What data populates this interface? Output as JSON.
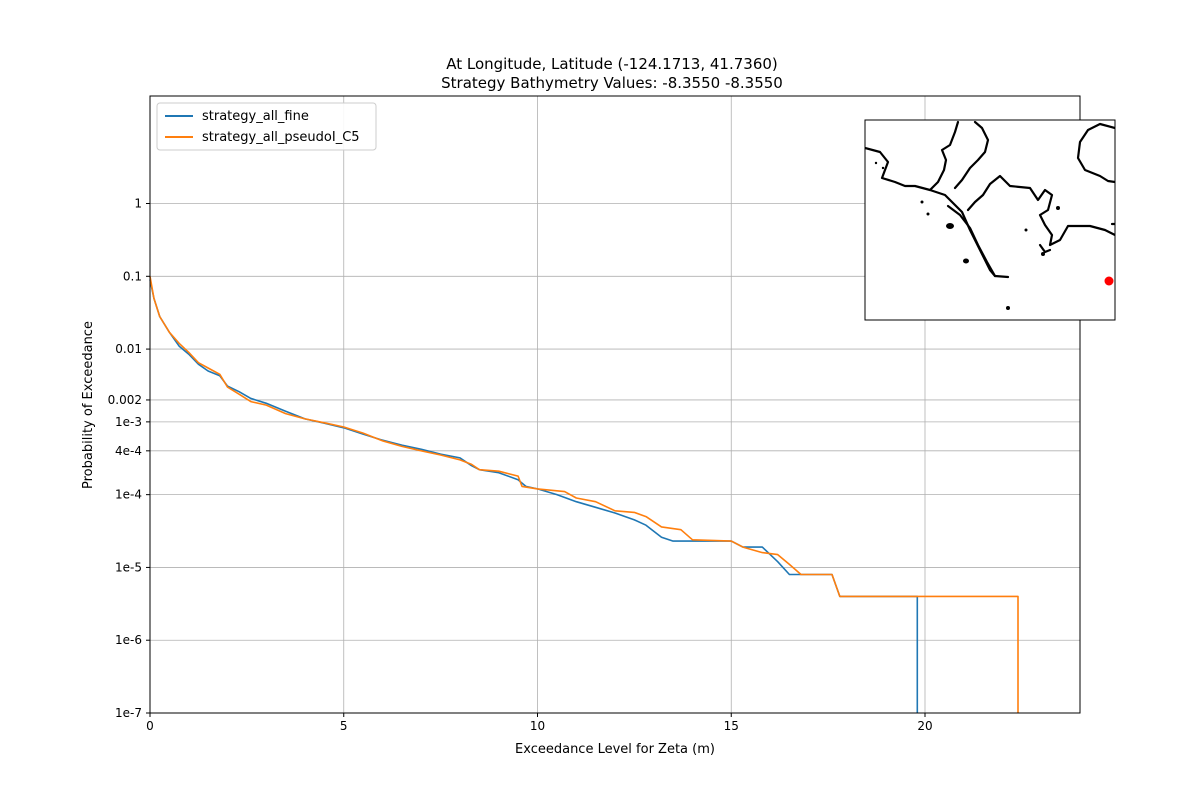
{
  "chart_data": {
    "type": "line",
    "title": "At Longitude, Latitude (-124.1713,  41.7360)",
    "subtitle": "Strategy Bathymetry Values:   -8.3550   -8.3550",
    "xlabel": "Exceedance Level for Zeta (m)",
    "ylabel": "Probability of Exceedance",
    "xlim": [
      0,
      24
    ],
    "ylim": [
      1e-07,
      30
    ],
    "yscale": "log",
    "grid": true,
    "legend_position": "top-left",
    "x_ticks": [
      {
        "value": 0,
        "label": "0"
      },
      {
        "value": 5,
        "label": "5"
      },
      {
        "value": 10,
        "label": "10"
      },
      {
        "value": 15,
        "label": "15"
      },
      {
        "value": 20,
        "label": "20"
      }
    ],
    "y_ticks": [
      {
        "value": 1,
        "label": "1"
      },
      {
        "value": 0.1,
        "label": "0.1"
      },
      {
        "value": 0.01,
        "label": "0.01"
      },
      {
        "value": 0.002,
        "label": "0.002"
      },
      {
        "value": 0.001,
        "label": "1e-3"
      },
      {
        "value": 0.0004,
        "label": "4e-4"
      },
      {
        "value": 0.0001,
        "label": "1e-4"
      },
      {
        "value": 1e-05,
        "label": "1e-5"
      },
      {
        "value": 1e-06,
        "label": "1e-6"
      },
      {
        "value": 1e-07,
        "label": "1e-7"
      }
    ],
    "series": [
      {
        "name": "strategy_all_fine",
        "color": "#1f77b4",
        "points": [
          [
            0.0,
            0.09
          ],
          [
            0.1,
            0.05
          ],
          [
            0.25,
            0.028
          ],
          [
            0.5,
            0.017
          ],
          [
            0.75,
            0.011
          ],
          [
            1.0,
            0.0085
          ],
          [
            1.25,
            0.0062
          ],
          [
            1.5,
            0.005
          ],
          [
            1.8,
            0.0043
          ],
          [
            2.0,
            0.0031
          ],
          [
            2.3,
            0.0026
          ],
          [
            2.6,
            0.0021
          ],
          [
            3.0,
            0.0018
          ],
          [
            3.5,
            0.0014
          ],
          [
            4.0,
            0.0011
          ],
          [
            4.5,
            0.00096
          ],
          [
            5.0,
            0.00083
          ],
          [
            5.5,
            0.00068
          ],
          [
            6.0,
            0.00056
          ],
          [
            6.5,
            0.00048
          ],
          [
            7.0,
            0.00042
          ],
          [
            7.5,
            0.00036
          ],
          [
            8.0,
            0.00032
          ],
          [
            8.3,
            0.00025
          ],
          [
            8.5,
            0.00022
          ],
          [
            9.0,
            0.0002
          ],
          [
            9.5,
            0.00016
          ],
          [
            9.7,
            0.00013
          ],
          [
            10.0,
            0.00012
          ],
          [
            10.5,
            0.0001
          ],
          [
            11.0,
            8e-05
          ],
          [
            11.5,
            6.7e-05
          ],
          [
            12.0,
            5.6e-05
          ],
          [
            12.5,
            4.5e-05
          ],
          [
            12.8,
            3.8e-05
          ],
          [
            13.2,
            2.6e-05
          ],
          [
            13.5,
            2.3e-05
          ],
          [
            14.0,
            2.3e-05
          ],
          [
            15.0,
            2.3e-05
          ],
          [
            15.3,
            1.9e-05
          ],
          [
            15.8,
            1.9e-05
          ],
          [
            16.2,
            1.2e-05
          ],
          [
            16.5,
            8e-06
          ],
          [
            17.6,
            8e-06
          ],
          [
            17.8,
            4e-06
          ],
          [
            19.8,
            4e-06
          ],
          [
            19.8,
            1e-07
          ]
        ]
      },
      {
        "name": "strategy_all_pseudoI_C5",
        "color": "#ff7f0e",
        "points": [
          [
            0.0,
            0.1
          ],
          [
            0.1,
            0.05
          ],
          [
            0.25,
            0.028
          ],
          [
            0.5,
            0.017
          ],
          [
            0.75,
            0.012
          ],
          [
            1.0,
            0.009
          ],
          [
            1.25,
            0.0065
          ],
          [
            1.5,
            0.0055
          ],
          [
            1.8,
            0.0045
          ],
          [
            2.0,
            0.003
          ],
          [
            2.3,
            0.0024
          ],
          [
            2.6,
            0.0019
          ],
          [
            3.0,
            0.0017
          ],
          [
            3.5,
            0.0013
          ],
          [
            4.0,
            0.0011
          ],
          [
            4.5,
            0.00097
          ],
          [
            5.0,
            0.00085
          ],
          [
            5.5,
            0.0007
          ],
          [
            6.0,
            0.00055
          ],
          [
            6.5,
            0.00046
          ],
          [
            7.0,
            0.0004
          ],
          [
            7.5,
            0.00035
          ],
          [
            8.0,
            0.0003
          ],
          [
            8.3,
            0.00026
          ],
          [
            8.5,
            0.00022
          ],
          [
            9.0,
            0.00021
          ],
          [
            9.5,
            0.00018
          ],
          [
            9.6,
            0.00013
          ],
          [
            10.0,
            0.00012
          ],
          [
            10.7,
            0.00011
          ],
          [
            11.0,
            9e-05
          ],
          [
            11.5,
            8e-05
          ],
          [
            12.0,
            6e-05
          ],
          [
            12.5,
            5.7e-05
          ],
          [
            12.8,
            5e-05
          ],
          [
            13.2,
            3.6e-05
          ],
          [
            13.7,
            3.3e-05
          ],
          [
            14.0,
            2.4e-05
          ],
          [
            15.0,
            2.3e-05
          ],
          [
            15.3,
            1.9e-05
          ],
          [
            15.8,
            1.6e-05
          ],
          [
            16.2,
            1.5e-05
          ],
          [
            16.5,
            1.1e-05
          ],
          [
            16.8,
            8e-06
          ],
          [
            17.6,
            8e-06
          ],
          [
            17.8,
            4e-06
          ],
          [
            22.4,
            4e-06
          ],
          [
            22.4,
            1e-07
          ]
        ]
      }
    ],
    "inset_map": {
      "location": "top-right",
      "marker_color": "#ff0000"
    }
  }
}
